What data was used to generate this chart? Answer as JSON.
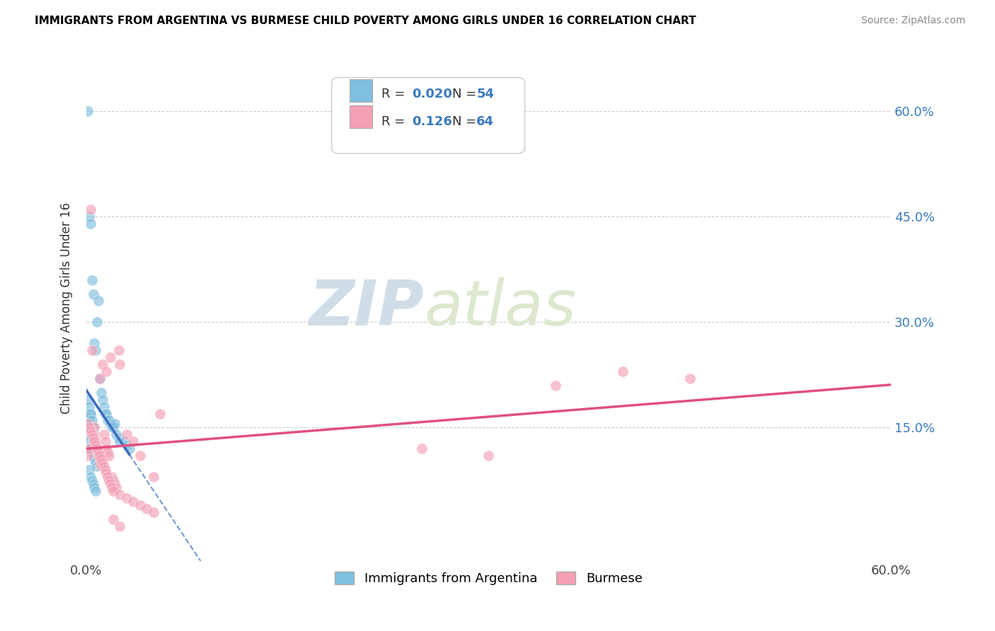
{
  "title": "IMMIGRANTS FROM ARGENTINA VS BURMESE CHILD POVERTY AMONG GIRLS UNDER 16 CORRELATION CHART",
  "source": "Source: ZipAtlas.com",
  "ylabel": "Child Poverty Among Girls Under 16",
  "legend_label1": "Immigrants from Argentina",
  "legend_label2": "Burmese",
  "r1": "0.020",
  "n1": "54",
  "r2": "0.126",
  "n2": "64",
  "color_blue": "#7fbfdf",
  "color_pink": "#f4a0b5",
  "color_blue_line": "#3b6abf",
  "color_pink_line": "#e05080",
  "color_r_n": "#3a7abf",
  "watermark_zip": "ZIP",
  "watermark_atlas": "atlas",
  "ytick_values": [
    0.15,
    0.3,
    0.45,
    0.6
  ],
  "ytick_labels": [
    "15.0%",
    "30.0%",
    "45.0%",
    "60.0%"
  ],
  "xlim": [
    0.0,
    0.6
  ],
  "ylim": [
    -0.04,
    0.68
  ],
  "arg_x": [
    0.001,
    0.002,
    0.003,
    0.004,
    0.005,
    0.006,
    0.007,
    0.008,
    0.009,
    0.01,
    0.011,
    0.012,
    0.013,
    0.014,
    0.015,
    0.016,
    0.017,
    0.018,
    0.019,
    0.02,
    0.021,
    0.022,
    0.024,
    0.025,
    0.028,
    0.03,
    0.032,
    0.001,
    0.002,
    0.003,
    0.001,
    0.002,
    0.003,
    0.004,
    0.005,
    0.006,
    0.007,
    0.008,
    0.001,
    0.002,
    0.003,
    0.004,
    0.005,
    0.006,
    0.007,
    0.008,
    0.009,
    0.01,
    0.002,
    0.003,
    0.004,
    0.005,
    0.006,
    0.007
  ],
  "arg_y": [
    0.6,
    0.45,
    0.44,
    0.36,
    0.34,
    0.27,
    0.26,
    0.3,
    0.33,
    0.22,
    0.2,
    0.19,
    0.18,
    0.17,
    0.17,
    0.16,
    0.16,
    0.155,
    0.15,
    0.15,
    0.155,
    0.14,
    0.135,
    0.13,
    0.13,
    0.125,
    0.12,
    0.155,
    0.16,
    0.17,
    0.14,
    0.13,
    0.12,
    0.115,
    0.11,
    0.105,
    0.1,
    0.095,
    0.19,
    0.18,
    0.17,
    0.16,
    0.15,
    0.14,
    0.13,
    0.12,
    0.115,
    0.11,
    0.09,
    0.08,
    0.075,
    0.07,
    0.065,
    0.06
  ],
  "bur_x": [
    0.001,
    0.002,
    0.003,
    0.004,
    0.005,
    0.006,
    0.007,
    0.008,
    0.009,
    0.01,
    0.011,
    0.012,
    0.013,
    0.014,
    0.015,
    0.016,
    0.017,
    0.018,
    0.019,
    0.02,
    0.021,
    0.022,
    0.024,
    0.025,
    0.03,
    0.035,
    0.04,
    0.05,
    0.055,
    0.35,
    0.4,
    0.45,
    0.001,
    0.002,
    0.003,
    0.004,
    0.005,
    0.006,
    0.007,
    0.008,
    0.009,
    0.01,
    0.011,
    0.012,
    0.013,
    0.014,
    0.015,
    0.016,
    0.017,
    0.018,
    0.019,
    0.02,
    0.025,
    0.03,
    0.035,
    0.04,
    0.045,
    0.05,
    0.25,
    0.3,
    0.01,
    0.015,
    0.02,
    0.025
  ],
  "bur_y": [
    0.11,
    0.12,
    0.46,
    0.26,
    0.14,
    0.15,
    0.13,
    0.12,
    0.11,
    0.1,
    0.095,
    0.24,
    0.14,
    0.13,
    0.12,
    0.115,
    0.11,
    0.25,
    0.08,
    0.075,
    0.07,
    0.065,
    0.26,
    0.24,
    0.14,
    0.13,
    0.11,
    0.08,
    0.17,
    0.21,
    0.23,
    0.22,
    0.155,
    0.15,
    0.145,
    0.14,
    0.135,
    0.13,
    0.125,
    0.12,
    0.115,
    0.11,
    0.105,
    0.1,
    0.095,
    0.09,
    0.085,
    0.08,
    0.075,
    0.07,
    0.065,
    0.06,
    0.055,
    0.05,
    0.045,
    0.04,
    0.035,
    0.03,
    0.12,
    0.11,
    0.22,
    0.23,
    0.02,
    0.01
  ]
}
